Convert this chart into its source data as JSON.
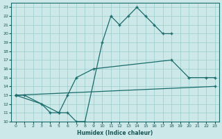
{
  "xlabel": "Humidex (Indice chaleur)",
  "bg_color": "#cce8e8",
  "grid_color": "#99cccc",
  "line_color": "#1a6b6b",
  "line1_x": [
    0,
    1,
    5,
    6,
    7,
    8,
    10,
    11,
    12,
    13,
    14,
    15,
    16,
    17,
    18
  ],
  "line1_y": [
    13,
    13,
    11,
    11,
    10,
    10,
    19,
    22,
    21,
    22,
    23,
    22,
    21,
    20,
    20
  ],
  "line2_x": [
    0,
    3,
    4,
    5,
    6,
    7,
    9,
    18,
    20,
    22,
    23
  ],
  "line2_y": [
    13,
    12,
    11,
    11,
    13,
    15,
    16,
    17,
    15,
    15,
    15
  ],
  "line3_x": [
    0,
    23
  ],
  "line3_y": [
    13,
    14
  ],
  "xlim": [
    -0.5,
    23.5
  ],
  "ylim": [
    10,
    23.5
  ],
  "yticks": [
    10,
    11,
    12,
    13,
    14,
    15,
    16,
    17,
    18,
    19,
    20,
    21,
    22,
    23
  ],
  "xticks": [
    0,
    1,
    2,
    3,
    4,
    5,
    6,
    7,
    8,
    9,
    10,
    11,
    12,
    13,
    14,
    15,
    16,
    17,
    18,
    19,
    20,
    21,
    22,
    23
  ]
}
